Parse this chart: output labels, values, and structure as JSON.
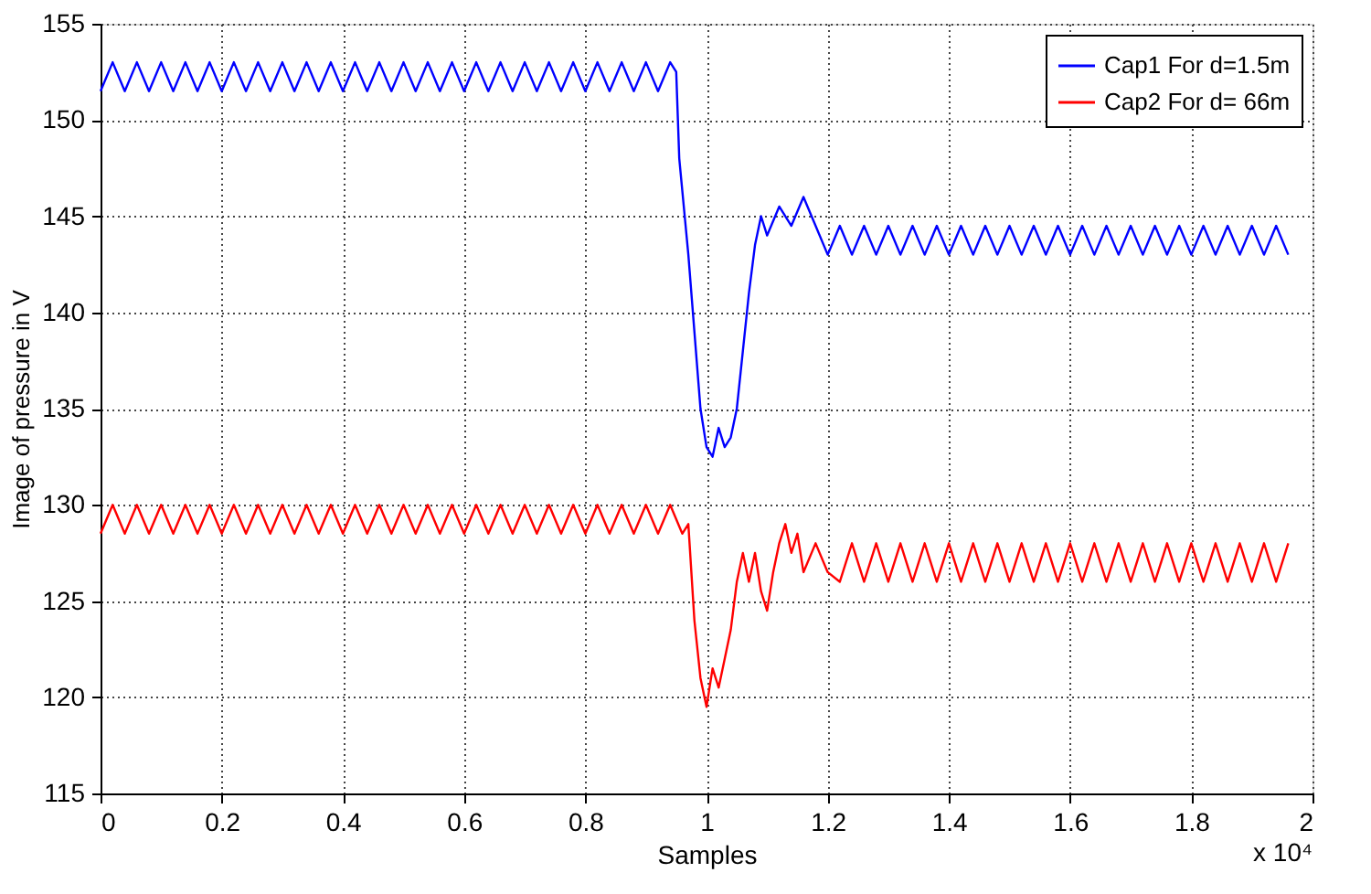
{
  "chart_data": {
    "type": "line",
    "xlabel": "Samples",
    "ylabel": "Image of pressure in V",
    "annotations": [
      "x 10⁴"
    ],
    "xlim": [
      0,
      2
    ],
    "xticks": [
      0,
      0.2,
      0.4,
      0.6,
      0.8,
      1,
      1.2,
      1.4,
      1.6,
      1.8,
      2
    ],
    "ylim": [
      115,
      155
    ],
    "yticks": [
      115,
      120,
      125,
      130,
      135,
      140,
      145,
      150,
      155
    ],
    "grid": true,
    "legend": "top right",
    "line_style": "solid",
    "marker": "none",
    "series": [
      {
        "name": "Cap1 For d=1.5m",
        "color": "#0000ff",
        "x": [
          0,
          0.02,
          0.04,
          0.06,
          0.08,
          0.1,
          0.12,
          0.14,
          0.16,
          0.18,
          0.2,
          0.22,
          0.24,
          0.26,
          0.28,
          0.3,
          0.32,
          0.34,
          0.36,
          0.38,
          0.4,
          0.42,
          0.44,
          0.46,
          0.48,
          0.5,
          0.52,
          0.54,
          0.56,
          0.58,
          0.6,
          0.62,
          0.64,
          0.66,
          0.68,
          0.7,
          0.72,
          0.74,
          0.76,
          0.78,
          0.8,
          0.82,
          0.84,
          0.86,
          0.88,
          0.9,
          0.92,
          0.94,
          0.95,
          0.955,
          0.97,
          0.99,
          1.0,
          1.01,
          1.02,
          1.03,
          1.04,
          1.05,
          1.06,
          1.07,
          1.08,
          1.09,
          1.1,
          1.12,
          1.14,
          1.16,
          1.18,
          1.2,
          1.22,
          1.24,
          1.26,
          1.28,
          1.3,
          1.32,
          1.34,
          1.36,
          1.38,
          1.4,
          1.42,
          1.44,
          1.46,
          1.48,
          1.5,
          1.52,
          1.54,
          1.56,
          1.58,
          1.6,
          1.62,
          1.64,
          1.66,
          1.68,
          1.7,
          1.72,
          1.74,
          1.76,
          1.78,
          1.8,
          1.82,
          1.84,
          1.86,
          1.88,
          1.9,
          1.92,
          1.94,
          1.96
        ],
        "values": [
          151.5,
          153,
          151.5,
          153,
          151.5,
          153,
          151.5,
          153,
          151.5,
          153,
          151.5,
          153,
          151.5,
          153,
          151.5,
          153,
          151.5,
          153,
          151.5,
          153,
          151.5,
          153,
          151.5,
          153,
          151.5,
          153,
          151.5,
          153,
          151.5,
          153,
          151.5,
          153,
          151.5,
          153,
          151.5,
          153,
          151.5,
          153,
          151.5,
          153,
          151.5,
          153,
          151.5,
          153,
          151.5,
          153,
          151.5,
          153,
          152.5,
          148,
          143,
          135,
          133,
          132.5,
          134,
          133,
          133.5,
          135,
          138,
          141,
          143.5,
          145,
          144,
          145.5,
          144.5,
          146,
          144.5,
          143,
          144.5,
          143,
          144.5,
          143,
          144.5,
          143,
          144.5,
          143,
          144.5,
          143,
          144.5,
          143,
          144.5,
          143,
          144.5,
          143,
          144.5,
          143,
          144.5,
          143,
          144.5,
          143,
          144.5,
          143,
          144.5,
          143,
          144.5,
          143,
          144.5,
          143,
          144.5,
          143,
          144.5,
          143,
          144.5,
          143,
          144.5,
          143
        ]
      },
      {
        "name": "Cap2 For d= 66m",
        "color": "#ff0000",
        "x": [
          0,
          0.02,
          0.04,
          0.06,
          0.08,
          0.1,
          0.12,
          0.14,
          0.16,
          0.18,
          0.2,
          0.22,
          0.24,
          0.26,
          0.28,
          0.3,
          0.32,
          0.34,
          0.36,
          0.38,
          0.4,
          0.42,
          0.44,
          0.46,
          0.48,
          0.5,
          0.52,
          0.54,
          0.56,
          0.58,
          0.6,
          0.62,
          0.64,
          0.66,
          0.68,
          0.7,
          0.72,
          0.74,
          0.76,
          0.78,
          0.8,
          0.82,
          0.84,
          0.86,
          0.88,
          0.9,
          0.92,
          0.94,
          0.96,
          0.97,
          0.98,
          0.99,
          1.0,
          1.01,
          1.02,
          1.03,
          1.04,
          1.05,
          1.06,
          1.07,
          1.08,
          1.09,
          1.1,
          1.11,
          1.12,
          1.13,
          1.14,
          1.15,
          1.16,
          1.18,
          1.2,
          1.22,
          1.24,
          1.26,
          1.28,
          1.3,
          1.32,
          1.34,
          1.36,
          1.38,
          1.4,
          1.42,
          1.44,
          1.46,
          1.48,
          1.5,
          1.52,
          1.54,
          1.56,
          1.58,
          1.6,
          1.62,
          1.64,
          1.66,
          1.68,
          1.7,
          1.72,
          1.74,
          1.76,
          1.78,
          1.8,
          1.82,
          1.84,
          1.86,
          1.88,
          1.9,
          1.92,
          1.94,
          1.96
        ],
        "values": [
          128.5,
          130,
          128.5,
          130,
          128.5,
          130,
          128.5,
          130,
          128.5,
          130,
          128.5,
          130,
          128.5,
          130,
          128.5,
          130,
          128.5,
          130,
          128.5,
          130,
          128.5,
          130,
          128.5,
          130,
          128.5,
          130,
          128.5,
          130,
          128.5,
          130,
          128.5,
          130,
          128.5,
          130,
          128.5,
          130,
          128.5,
          130,
          128.5,
          130,
          128.5,
          130,
          128.5,
          130,
          128.5,
          130,
          128.5,
          130,
          128.5,
          129,
          124,
          121,
          119.5,
          121.5,
          120.5,
          122,
          123.5,
          126,
          127.5,
          126,
          127.5,
          125.5,
          124.5,
          126.5,
          128,
          129,
          127.5,
          128.5,
          126.5,
          128,
          126.5,
          126,
          128,
          126,
          128,
          126,
          128,
          126,
          128,
          126,
          128,
          126,
          128,
          126,
          128,
          126,
          128,
          126,
          128,
          126,
          128,
          126,
          128,
          126,
          128,
          126,
          128,
          126,
          128,
          126,
          128,
          126,
          128,
          126,
          128,
          126,
          128,
          126,
          128
        ]
      }
    ]
  }
}
